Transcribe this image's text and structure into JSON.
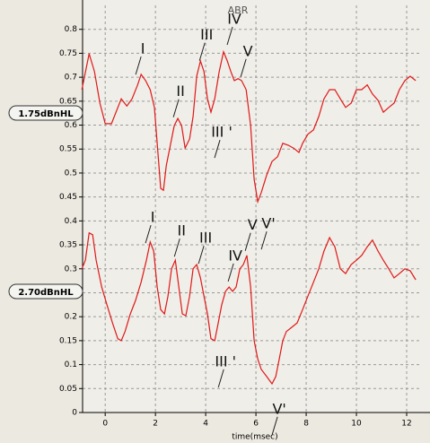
{
  "chart_data": {
    "type": "line",
    "title": "ABR",
    "x_label": "time(msec)",
    "xlim": [
      -0.9,
      12.5
    ],
    "ylim": [
      0,
      0.85
    ],
    "xticks": [
      0,
      2,
      4,
      6,
      8,
      10,
      12
    ],
    "yticks": [
      0,
      0.05,
      0.1,
      0.15,
      0.2,
      0.25,
      0.3,
      0.35,
      0.4,
      0.45,
      0.5,
      0.55,
      0.6,
      0.65,
      0.7,
      0.75,
      0.8
    ],
    "grid": true,
    "series": [
      {
        "name": "1.75dBnHL",
        "color": "#e01818",
        "x": [
          -0.93,
          -0.64,
          -0.43,
          -0.21,
          0,
          0.25,
          0.43,
          0.64,
          0.86,
          1.07,
          1.29,
          1.43,
          1.61,
          1.79,
          1.96,
          2.07,
          2.21,
          2.32,
          2.43,
          2.57,
          2.75,
          2.89,
          3.04,
          3.18,
          3.36,
          3.5,
          3.64,
          3.79,
          3.93,
          4.07,
          4.21,
          4.36,
          4.54,
          4.71,
          4.86,
          5.0,
          5.14,
          5.29,
          5.43,
          5.61,
          5.79,
          5.93,
          6.07,
          6.21,
          6.43,
          6.64,
          6.86,
          7.07,
          7.29,
          7.5,
          7.71,
          7.86,
          8.07,
          8.29,
          8.5,
          8.71,
          8.93,
          9.14,
          9.36,
          9.57,
          9.79,
          10.0,
          10.21,
          10.43,
          10.64,
          10.86,
          11.07,
          11.29,
          11.5,
          11.71,
          11.93,
          12.14,
          12.36
        ],
        "values": [
          0.674,
          0.749,
          0.712,
          0.646,
          0.603,
          0.603,
          0.627,
          0.655,
          0.64,
          0.655,
          0.684,
          0.706,
          0.693,
          0.674,
          0.637,
          0.562,
          0.468,
          0.464,
          0.515,
          0.552,
          0.599,
          0.614,
          0.599,
          0.552,
          0.571,
          0.618,
          0.702,
          0.734,
          0.712,
          0.655,
          0.627,
          0.655,
          0.712,
          0.753,
          0.734,
          0.712,
          0.693,
          0.697,
          0.693,
          0.674,
          0.599,
          0.487,
          0.44,
          0.459,
          0.496,
          0.524,
          0.534,
          0.562,
          0.558,
          0.552,
          0.543,
          0.562,
          0.581,
          0.59,
          0.618,
          0.655,
          0.674,
          0.674,
          0.655,
          0.637,
          0.646,
          0.674,
          0.674,
          0.684,
          0.665,
          0.652,
          0.627,
          0.637,
          0.646,
          0.674,
          0.693,
          0.702,
          0.693
        ]
      },
      {
        "name": "2.70dBnHL",
        "color": "#e01818",
        "x": [
          -0.93,
          -0.79,
          -0.64,
          -0.5,
          -0.36,
          -0.14,
          0.07,
          0.29,
          0.5,
          0.64,
          0.79,
          1.0,
          1.21,
          1.43,
          1.64,
          1.79,
          1.93,
          2.07,
          2.21,
          2.36,
          2.5,
          2.64,
          2.79,
          2.93,
          3.07,
          3.21,
          3.36,
          3.5,
          3.64,
          3.79,
          3.93,
          4.07,
          4.21,
          4.36,
          4.5,
          4.64,
          4.79,
          4.93,
          5.07,
          5.21,
          5.36,
          5.5,
          5.64,
          5.79,
          5.93,
          6.07,
          6.21,
          6.43,
          6.64,
          6.79,
          6.93,
          7.07,
          7.21,
          7.43,
          7.64,
          7.86,
          8.07,
          8.29,
          8.5,
          8.71,
          8.93,
          9.14,
          9.36,
          9.57,
          9.79,
          10.0,
          10.21,
          10.43,
          10.64,
          10.86,
          11.07,
          11.29,
          11.5,
          11.71,
          11.93,
          12.14,
          12.36
        ],
        "values": [
          0.3,
          0.318,
          0.375,
          0.371,
          0.318,
          0.262,
          0.225,
          0.187,
          0.154,
          0.15,
          0.169,
          0.206,
          0.234,
          0.272,
          0.318,
          0.356,
          0.337,
          0.262,
          0.215,
          0.206,
          0.243,
          0.3,
          0.318,
          0.262,
          0.206,
          0.202,
          0.243,
          0.3,
          0.309,
          0.281,
          0.243,
          0.206,
          0.154,
          0.15,
          0.187,
          0.225,
          0.253,
          0.262,
          0.253,
          0.262,
          0.3,
          0.309,
          0.328,
          0.262,
          0.15,
          0.112,
          0.09,
          0.075,
          0.06,
          0.075,
          0.112,
          0.15,
          0.169,
          0.178,
          0.187,
          0.215,
          0.243,
          0.272,
          0.3,
          0.337,
          0.365,
          0.346,
          0.3,
          0.29,
          0.309,
          0.318,
          0.328,
          0.346,
          0.36,
          0.337,
          0.318,
          0.3,
          0.281,
          0.29,
          0.3,
          0.296,
          0.277
        ]
      }
    ],
    "annotations": [
      {
        "text": "I",
        "x": 1.5,
        "y": 0.758
      },
      {
        "text": "II",
        "x": 3.0,
        "y": 0.669
      },
      {
        "text": "III",
        "x": 4.04,
        "y": 0.787
      },
      {
        "text": "IV",
        "x": 5.14,
        "y": 0.82
      },
      {
        "text": "V",
        "x": 5.68,
        "y": 0.753
      },
      {
        "text": "III '",
        "x": 4.64,
        "y": 0.584
      },
      {
        "text": "V'",
        "x": 6.5,
        "y": 0.393
      },
      {
        "text": "I",
        "x": 1.89,
        "y": 0.406
      },
      {
        "text": "II",
        "x": 3.04,
        "y": 0.378
      },
      {
        "text": "III",
        "x": 4.0,
        "y": 0.363
      },
      {
        "text": "IV",
        "x": 5.18,
        "y": 0.326
      },
      {
        "text": "V",
        "x": 5.86,
        "y": 0.39
      },
      {
        "text": "III '",
        "x": 4.79,
        "y": 0.105
      },
      {
        "text": "V'",
        "x": 6.93,
        "y": 0.006
      }
    ]
  }
}
